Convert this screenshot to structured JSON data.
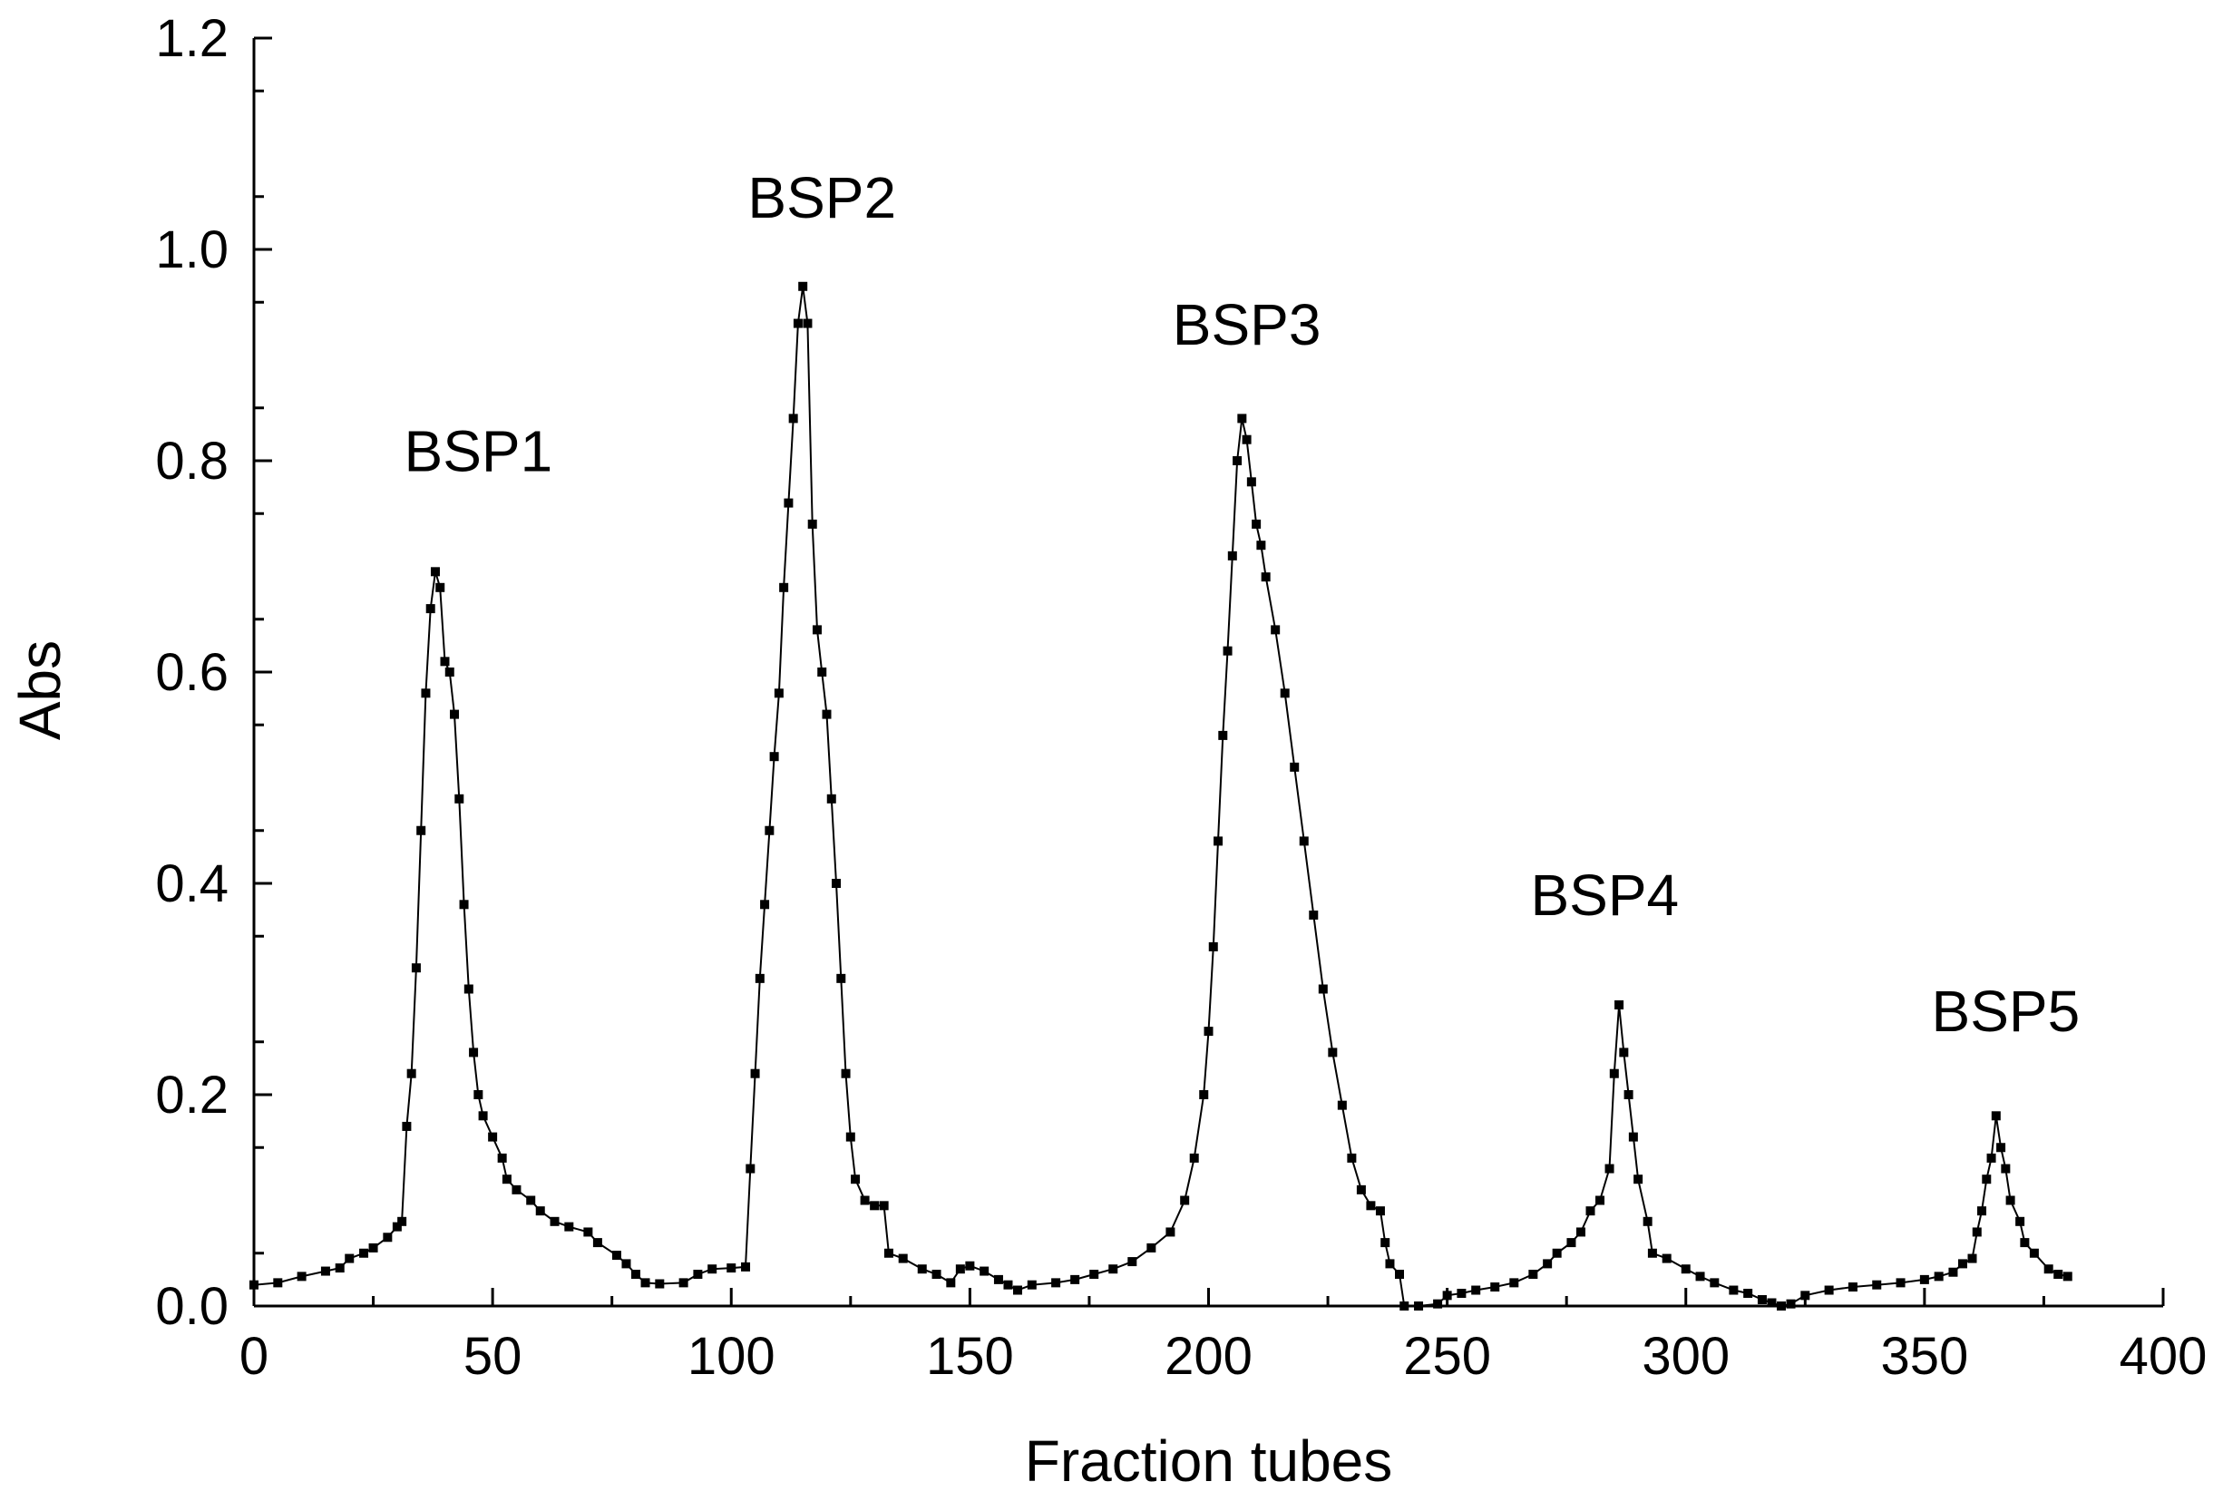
{
  "chart_data": {
    "type": "line",
    "xlabel": "Fraction tubes",
    "ylabel": "Abs",
    "xlim": [
      0,
      400
    ],
    "ylim": [
      0,
      1.2
    ],
    "x_ticks": [
      "0",
      "50",
      "100",
      "150",
      "200",
      "250",
      "300",
      "350",
      "400"
    ],
    "y_ticks": [
      "0.0",
      "0.2",
      "0.4",
      "0.6",
      "0.8",
      "1.0",
      "1.2"
    ],
    "grid": false,
    "legend": "none",
    "marker": "square",
    "annotations": [
      {
        "text": "BSP1",
        "x": 47,
        "y": 0.79
      },
      {
        "text": "BSP2",
        "x": 119,
        "y": 1.03
      },
      {
        "text": "BSP3",
        "x": 208,
        "y": 0.91
      },
      {
        "text": "BSP4",
        "x": 283,
        "y": 0.37
      },
      {
        "text": "BSP5",
        "x": 367,
        "y": 0.26
      }
    ],
    "series": [
      {
        "points": [
          [
            0,
            0.02
          ],
          [
            5,
            0.022
          ],
          [
            10,
            0.028
          ],
          [
            15,
            0.033
          ],
          [
            18,
            0.036
          ],
          [
            20,
            0.045
          ],
          [
            23,
            0.05
          ],
          [
            25,
            0.055
          ],
          [
            28,
            0.065
          ],
          [
            30,
            0.075
          ],
          [
            31,
            0.08
          ],
          [
            32,
            0.17
          ],
          [
            33,
            0.22
          ],
          [
            34,
            0.32
          ],
          [
            35,
            0.45
          ],
          [
            36,
            0.58
          ],
          [
            37,
            0.66
          ],
          [
            38,
            0.695
          ],
          [
            39,
            0.68
          ],
          [
            40,
            0.61
          ],
          [
            41,
            0.6
          ],
          [
            42,
            0.56
          ],
          [
            43,
            0.48
          ],
          [
            44,
            0.38
          ],
          [
            45,
            0.3
          ],
          [
            46,
            0.24
          ],
          [
            47,
            0.2
          ],
          [
            48,
            0.18
          ],
          [
            50,
            0.16
          ],
          [
            52,
            0.14
          ],
          [
            53,
            0.12
          ],
          [
            55,
            0.11
          ],
          [
            58,
            0.1
          ],
          [
            60,
            0.09
          ],
          [
            63,
            0.08
          ],
          [
            66,
            0.075
          ],
          [
            70,
            0.07
          ],
          [
            72,
            0.06
          ],
          [
            76,
            0.048
          ],
          [
            78,
            0.04
          ],
          [
            80,
            0.03
          ],
          [
            82,
            0.022
          ],
          [
            85,
            0.021
          ],
          [
            90,
            0.022
          ],
          [
            93,
            0.03
          ],
          [
            96,
            0.035
          ],
          [
            100,
            0.036
          ],
          [
            103,
            0.037
          ],
          [
            104,
            0.13
          ],
          [
            105,
            0.22
          ],
          [
            106,
            0.31
          ],
          [
            107,
            0.38
          ],
          [
            108,
            0.45
          ],
          [
            109,
            0.52
          ],
          [
            110,
            0.58
          ],
          [
            111,
            0.68
          ],
          [
            112,
            0.76
          ],
          [
            113,
            0.84
          ],
          [
            114,
            0.93
          ],
          [
            115,
            0.965
          ],
          [
            116,
            0.93
          ],
          [
            117,
            0.74
          ],
          [
            118,
            0.64
          ],
          [
            119,
            0.6
          ],
          [
            120,
            0.56
          ],
          [
            121,
            0.48
          ],
          [
            122,
            0.4
          ],
          [
            123,
            0.31
          ],
          [
            124,
            0.22
          ],
          [
            125,
            0.16
          ],
          [
            126,
            0.12
          ],
          [
            128,
            0.1
          ],
          [
            130,
            0.095
          ],
          [
            132,
            0.095
          ],
          [
            133,
            0.05
          ],
          [
            136,
            0.045
          ],
          [
            140,
            0.035
          ],
          [
            143,
            0.03
          ],
          [
            146,
            0.022
          ],
          [
            148,
            0.035
          ],
          [
            150,
            0.038
          ],
          [
            153,
            0.033
          ],
          [
            156,
            0.025
          ],
          [
            158,
            0.02
          ],
          [
            160,
            0.015
          ],
          [
            163,
            0.02
          ],
          [
            168,
            0.022
          ],
          [
            172,
            0.025
          ],
          [
            176,
            0.03
          ],
          [
            180,
            0.035
          ],
          [
            184,
            0.042
          ],
          [
            188,
            0.055
          ],
          [
            192,
            0.07
          ],
          [
            195,
            0.1
          ],
          [
            197,
            0.14
          ],
          [
            199,
            0.2
          ],
          [
            200,
            0.26
          ],
          [
            201,
            0.34
          ],
          [
            202,
            0.44
          ],
          [
            203,
            0.54
          ],
          [
            204,
            0.62
          ],
          [
            205,
            0.71
          ],
          [
            206,
            0.8
          ],
          [
            207,
            0.84
          ],
          [
            208,
            0.82
          ],
          [
            209,
            0.78
          ],
          [
            210,
            0.74
          ],
          [
            211,
            0.72
          ],
          [
            212,
            0.69
          ],
          [
            214,
            0.64
          ],
          [
            216,
            0.58
          ],
          [
            218,
            0.51
          ],
          [
            220,
            0.44
          ],
          [
            222,
            0.37
          ],
          [
            224,
            0.3
          ],
          [
            226,
            0.24
          ],
          [
            228,
            0.19
          ],
          [
            230,
            0.14
          ],
          [
            232,
            0.11
          ],
          [
            234,
            0.095
          ],
          [
            236,
            0.09
          ],
          [
            237,
            0.06
          ],
          [
            238,
            0.04
          ],
          [
            240,
            0.03
          ],
          [
            241,
            0.0
          ],
          [
            244,
            0.0
          ],
          [
            248,
            0.002
          ],
          [
            250,
            0.01
          ],
          [
            253,
            0.012
          ],
          [
            256,
            0.015
          ],
          [
            260,
            0.018
          ],
          [
            264,
            0.022
          ],
          [
            268,
            0.03
          ],
          [
            271,
            0.04
          ],
          [
            273,
            0.05
          ],
          [
            276,
            0.06
          ],
          [
            278,
            0.07
          ],
          [
            280,
            0.09
          ],
          [
            282,
            0.1
          ],
          [
            284,
            0.13
          ],
          [
            285,
            0.22
          ],
          [
            286,
            0.285
          ],
          [
            287,
            0.24
          ],
          [
            288,
            0.2
          ],
          [
            289,
            0.16
          ],
          [
            290,
            0.12
          ],
          [
            292,
            0.08
          ],
          [
            293,
            0.05
          ],
          [
            296,
            0.045
          ],
          [
            300,
            0.035
          ],
          [
            303,
            0.028
          ],
          [
            306,
            0.022
          ],
          [
            310,
            0.015
          ],
          [
            313,
            0.012
          ],
          [
            316,
            0.006
          ],
          [
            318,
            0.003
          ],
          [
            320,
            0.0
          ],
          [
            322,
            0.002
          ],
          [
            325,
            0.01
          ],
          [
            330,
            0.015
          ],
          [
            335,
            0.018
          ],
          [
            340,
            0.02
          ],
          [
            345,
            0.022
          ],
          [
            350,
            0.025
          ],
          [
            353,
            0.028
          ],
          [
            356,
            0.032
          ],
          [
            358,
            0.04
          ],
          [
            360,
            0.045
          ],
          [
            361,
            0.07
          ],
          [
            362,
            0.09
          ],
          [
            363,
            0.12
          ],
          [
            364,
            0.14
          ],
          [
            365,
            0.18
          ],
          [
            366,
            0.15
          ],
          [
            367,
            0.13
          ],
          [
            368,
            0.1
          ],
          [
            370,
            0.08
          ],
          [
            371,
            0.06
          ],
          [
            373,
            0.05
          ],
          [
            376,
            0.035
          ],
          [
            378,
            0.03
          ],
          [
            380,
            0.028
          ]
        ]
      }
    ]
  }
}
